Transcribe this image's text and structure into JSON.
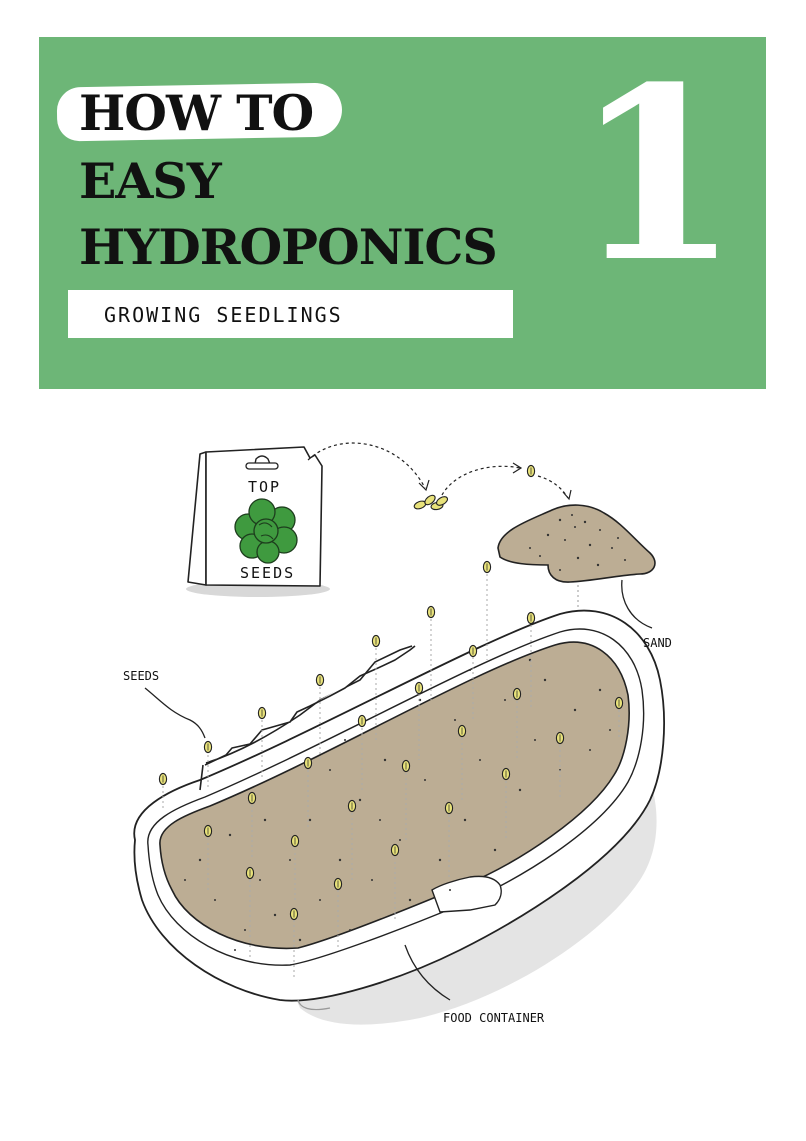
{
  "header": {
    "title_line1": "HOW TO",
    "title_line2": "EASY",
    "title_line3": "HYDROPONICS",
    "number": "1",
    "subtitle": "GROWING SEEDLINGS",
    "banner_color": "#6db677"
  },
  "illustration": {
    "packet_top": "TOP",
    "packet_bottom": "SEEDS",
    "labels": {
      "seeds": "SEEDS",
      "sand": "SAND",
      "container": "FOOD CONTAINER"
    },
    "colors": {
      "soil": "#bcad94",
      "seed": "#e8e27a",
      "leaf": "#3f9a3f"
    }
  }
}
